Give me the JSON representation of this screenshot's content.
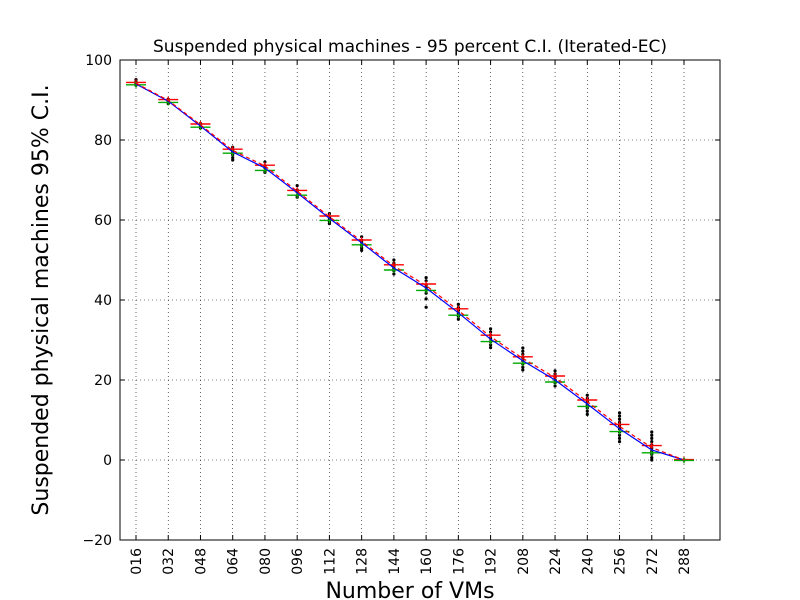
{
  "chart_data": {
    "type": "line",
    "title": "Suspended physical machines - 95 percent C.I. (Iterated-EC)",
    "xlabel": "Number of VMs",
    "ylabel": "Suspended physical machines 95% C.I.",
    "categories": [
      "016",
      "032",
      "048",
      "064",
      "080",
      "096",
      "112",
      "128",
      "144",
      "160",
      "176",
      "192",
      "208",
      "224",
      "240",
      "256",
      "272",
      "288"
    ],
    "ylim": [
      -20,
      100
    ],
    "yticks": [
      "−20",
      "0",
      "20",
      "40",
      "60",
      "80",
      "100"
    ],
    "grid": true,
    "series": [
      {
        "color": "#0000ff",
        "values": [
          94.0,
          89.7,
          83.5,
          77.0,
          73.0,
          66.8,
          60.4,
          54.3,
          48.0,
          43.0,
          36.8,
          30.2,
          24.8,
          20.0,
          14.0,
          7.8,
          2.5,
          0.0
        ]
      },
      {
        "color": "#ff0000",
        "style": "dashed",
        "values": [
          94.2,
          89.9,
          83.8,
          77.4,
          73.5,
          67.2,
          60.8,
          54.7,
          48.5,
          43.6,
          37.4,
          30.8,
          25.4,
          20.6,
          14.6,
          8.4,
          3.1,
          0.0
        ]
      }
    ],
    "ci_upper": [
      94.4,
      90.1,
      84.0,
      77.7,
      73.7,
      67.4,
      61.0,
      55.0,
      48.8,
      44.0,
      37.8,
      31.2,
      25.8,
      21.0,
      15.0,
      8.9,
      3.6,
      0.1
    ],
    "ci_lower": [
      93.8,
      89.4,
      83.2,
      76.7,
      72.4,
      66.2,
      59.9,
      53.8,
      47.5,
      42.4,
      36.2,
      29.6,
      24.2,
      19.5,
      13.4,
      7.1,
      1.8,
      -0.1
    ],
    "scatter": [
      [
        94.5,
        95.1,
        93.7,
        94.0,
        94.2
      ],
      [
        90.2,
        89.1,
        89.6,
        89.9
      ],
      [
        84.1,
        83.0,
        83.4,
        83.8
      ],
      [
        78.2,
        77.0,
        76.3,
        75.6,
        75.0,
        77.6
      ],
      [
        74.5,
        73.6,
        72.3,
        71.9,
        73.1
      ],
      [
        68.6,
        67.5,
        66.1,
        65.7,
        67.0
      ],
      [
        61.6,
        60.6,
        59.6,
        59.1,
        60.2
      ],
      [
        55.8,
        54.9,
        53.7,
        53.0,
        52.4,
        54.4
      ],
      [
        50.0,
        49.2,
        48.4,
        47.3,
        46.5,
        47.9
      ],
      [
        45.6,
        44.8,
        43.8,
        43.2,
        42.4,
        41.7,
        40.3,
        38.2
      ],
      [
        38.9,
        38.1,
        37.4,
        36.7,
        35.9,
        35.2
      ],
      [
        32.8,
        32.0,
        31.2,
        30.4,
        29.6,
        28.8,
        28.1
      ],
      [
        28.0,
        27.2,
        26.4,
        25.6,
        24.8,
        24.0,
        23.2,
        22.5
      ],
      [
        22.3,
        21.5,
        20.7,
        20.0,
        19.3,
        18.5
      ],
      [
        16.2,
        15.4,
        14.6,
        13.8,
        13.0,
        12.2,
        11.4
      ],
      [
        11.8,
        11.0,
        10.2,
        9.4,
        8.6,
        7.8,
        7.0,
        6.2,
        5.4,
        4.6
      ],
      [
        7.0,
        6.2,
        5.4,
        4.6,
        3.8,
        3.0,
        2.2,
        1.4,
        0.6,
        0.0
      ],
      [
        0.0,
        0.0
      ]
    ]
  }
}
